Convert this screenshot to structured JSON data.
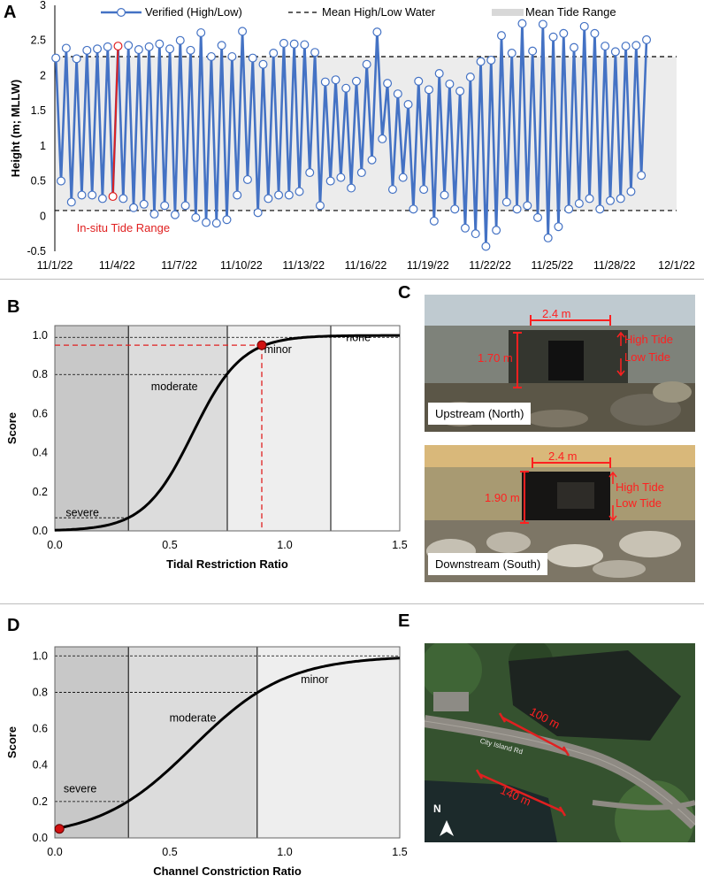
{
  "panel_labels": {
    "a": "A",
    "b": "B",
    "c": "C",
    "d": "D",
    "e": "E"
  },
  "colors": {
    "series": "#4472c4",
    "highlight": "#e02020",
    "severe_zone": "#c8c8c8",
    "moderate_zone": "#dcdcdc",
    "minor_zone": "#eeeeee",
    "tide_band": "#ececec",
    "photo_annotation": "#ff2020"
  },
  "chart_data": [
    {
      "id": "A",
      "type": "line",
      "ylabel": "Height (m; MLLW)",
      "xlabel": "",
      "ylim": [
        -0.5,
        3
      ],
      "yticks": [
        -0.5,
        0,
        0.5,
        1,
        1.5,
        2,
        2.5,
        3
      ],
      "x_start": "11/1/22",
      "x_end": "12/1/22",
      "x_days": 30,
      "xtick_labels": [
        "11/1/22",
        "11/4/22",
        "11/7/22",
        "11/10/22",
        "11/13/22",
        "11/16/22",
        "11/19/22",
        "11/22/22",
        "11/25/22",
        "11/28/22",
        "12/1/22"
      ],
      "legend": {
        "verified": "Verified (High/Low)",
        "mean_line": "Mean High/Low Water",
        "range": "Mean Tide Range"
      },
      "mean_high_water": 2.27,
      "mean_low_water": 0.08,
      "annotation": "In-situ Tide Range",
      "highlight_index": [
        11,
        12
      ],
      "points": [
        [
          0.05,
          2.25
        ],
        [
          0.3,
          0.5
        ],
        [
          0.55,
          2.39
        ],
        [
          0.8,
          0.2
        ],
        [
          1.05,
          2.24
        ],
        [
          1.3,
          0.3
        ],
        [
          1.55,
          2.36
        ],
        [
          1.8,
          0.3
        ],
        [
          2.05,
          2.38
        ],
        [
          2.3,
          0.25
        ],
        [
          2.55,
          2.41
        ],
        [
          2.8,
          0.28
        ],
        [
          3.05,
          2.42
        ],
        [
          3.3,
          0.25
        ],
        [
          3.55,
          2.43
        ],
        [
          3.8,
          0.12
        ],
        [
          4.05,
          2.37
        ],
        [
          4.3,
          0.17
        ],
        [
          4.55,
          2.41
        ],
        [
          4.8,
          0.03
        ],
        [
          5.05,
          2.45
        ],
        [
          5.3,
          0.15
        ],
        [
          5.55,
          2.38
        ],
        [
          5.8,
          0.02
        ],
        [
          6.05,
          2.5
        ],
        [
          6.3,
          0.15
        ],
        [
          6.55,
          2.36
        ],
        [
          6.8,
          -0.02
        ],
        [
          7.05,
          2.61
        ],
        [
          7.3,
          -0.09
        ],
        [
          7.55,
          2.27
        ],
        [
          7.8,
          -0.1
        ],
        [
          8.05,
          2.43
        ],
        [
          8.3,
          -0.05
        ],
        [
          8.55,
          2.27
        ],
        [
          8.8,
          0.3
        ],
        [
          9.05,
          2.63
        ],
        [
          9.3,
          0.52
        ],
        [
          9.55,
          2.25
        ],
        [
          9.8,
          0.05
        ],
        [
          10.05,
          2.16
        ],
        [
          10.3,
          0.25
        ],
        [
          10.55,
          2.32
        ],
        [
          10.8,
          0.3
        ],
        [
          11.05,
          2.46
        ],
        [
          11.3,
          0.3
        ],
        [
          11.55,
          2.45
        ],
        [
          11.8,
          0.35
        ],
        [
          12.05,
          2.44
        ],
        [
          12.3,
          0.62
        ],
        [
          12.55,
          2.33
        ],
        [
          12.8,
          0.15
        ],
        [
          13.05,
          1.91
        ],
        [
          13.3,
          0.5
        ],
        [
          13.55,
          1.94
        ],
        [
          13.8,
          0.55
        ],
        [
          14.05,
          1.82
        ],
        [
          14.3,
          0.4
        ],
        [
          14.55,
          1.92
        ],
        [
          14.8,
          0.62
        ],
        [
          15.05,
          2.16
        ],
        [
          15.3,
          0.8
        ],
        [
          15.55,
          2.62
        ],
        [
          15.8,
          1.1
        ],
        [
          16.05,
          1.89
        ],
        [
          16.3,
          0.38
        ],
        [
          16.55,
          1.74
        ],
        [
          16.8,
          0.55
        ],
        [
          17.05,
          1.59
        ],
        [
          17.3,
          0.1
        ],
        [
          17.55,
          1.92
        ],
        [
          17.8,
          0.38
        ],
        [
          18.05,
          1.8
        ],
        [
          18.3,
          -0.07
        ],
        [
          18.55,
          2.03
        ],
        [
          18.8,
          0.3
        ],
        [
          19.05,
          1.88
        ],
        [
          19.3,
          0.1
        ],
        [
          19.55,
          1.78
        ],
        [
          19.8,
          -0.17
        ],
        [
          20.05,
          1.98
        ],
        [
          20.3,
          -0.25
        ],
        [
          20.55,
          2.2
        ],
        [
          20.8,
          -0.43
        ],
        [
          21.05,
          2.22
        ],
        [
          21.3,
          -0.2
        ],
        [
          21.55,
          2.57
        ],
        [
          21.8,
          0.2
        ],
        [
          22.05,
          2.32
        ],
        [
          22.3,
          0.1
        ],
        [
          22.55,
          2.74
        ],
        [
          22.8,
          0.15
        ],
        [
          23.05,
          2.35
        ],
        [
          23.3,
          -0.02
        ],
        [
          23.55,
          2.73
        ],
        [
          23.8,
          -0.31
        ],
        [
          24.05,
          2.55
        ],
        [
          24.3,
          -0.15
        ],
        [
          24.55,
          2.6
        ],
        [
          24.8,
          0.1
        ],
        [
          25.05,
          2.4
        ],
        [
          25.3,
          0.18
        ],
        [
          25.55,
          2.7
        ],
        [
          25.8,
          0.25
        ],
        [
          26.05,
          2.6
        ],
        [
          26.3,
          0.1
        ],
        [
          26.55,
          2.42
        ],
        [
          26.8,
          0.22
        ],
        [
          27.05,
          2.34
        ],
        [
          27.3,
          0.25
        ],
        [
          27.55,
          2.42
        ],
        [
          27.8,
          0.35
        ],
        [
          28.05,
          2.43
        ],
        [
          28.3,
          0.58
        ],
        [
          28.55,
          2.51
        ]
      ]
    },
    {
      "id": "B",
      "type": "line",
      "xlabel": "Tidal Restriction Ratio",
      "ylabel": "Score",
      "xlim": [
        0,
        1.5
      ],
      "ylim": [
        0,
        1.05
      ],
      "xticks": [
        0,
        0.5,
        1,
        1.5
      ],
      "xtick_labels": [
        "0.0",
        "0.5",
        "1.0",
        "1.5"
      ],
      "yticks": [
        0,
        0.2,
        0.4,
        0.6,
        0.8,
        1
      ],
      "ytick_labels": [
        "0.0",
        "0.2",
        "0.4",
        "0.6",
        "0.8",
        "1.0"
      ],
      "zones": [
        {
          "label": "severe",
          "from": 0,
          "to": 0.32,
          "label_x": 0.12,
          "label_y": 0.075
        },
        {
          "label": "moderate",
          "from": 0.32,
          "to": 0.75,
          "label_x": 0.52,
          "label_y": 0.72
        },
        {
          "label": "minor",
          "from": 0.75,
          "to": 1.2,
          "label_x": 0.97,
          "label_y": 0.91
        },
        {
          "label": "none",
          "from": 1.2,
          "to": 1.5,
          "label_x": 1.32,
          "label_y": 0.97
        }
      ],
      "thresholds": [
        0.067,
        0.8,
        0.99
      ],
      "curve": {
        "midpoint": 0.6,
        "steepness": 9.4
      },
      "marker": {
        "x": 0.9,
        "y": 0.95
      }
    },
    {
      "id": "D",
      "type": "line",
      "xlabel": "Channel Constriction Ratio",
      "ylabel": "Score",
      "xlim": [
        0,
        1.5
      ],
      "ylim": [
        0,
        1.05
      ],
      "xticks": [
        0,
        0.5,
        1,
        1.5
      ],
      "xtick_labels": [
        "0.0",
        "0.5",
        "1.0",
        "1.5"
      ],
      "yticks": [
        0,
        0.2,
        0.4,
        0.6,
        0.8,
        1
      ],
      "ytick_labels": [
        "0.0",
        "0.2",
        "0.4",
        "0.6",
        "0.8",
        "1.0"
      ],
      "zones": [
        {
          "label": "severe",
          "from": 0,
          "to": 0.32,
          "label_x": 0.11,
          "label_y": 0.25
        },
        {
          "label": "moderate",
          "from": 0.32,
          "to": 0.88,
          "label_x": 0.6,
          "label_y": 0.64
        },
        {
          "label": "minor",
          "from": 0.88,
          "to": 1.5,
          "label_x": 1.13,
          "label_y": 0.85
        }
      ],
      "thresholds": [
        0.2,
        0.8,
        1.0
      ],
      "curve": {
        "midpoint": 0.6,
        "steepness": 4.9
      },
      "marker": {
        "x": 0.02,
        "y": 0.05
      }
    }
  ],
  "photos": {
    "upstream": {
      "caption": "Upstream (North)",
      "width": "2.4 m",
      "height": "1.70 m",
      "high": "High Tide",
      "low": "Low Tide"
    },
    "downstream": {
      "caption": "Downstream (South)",
      "width": "2.4 m",
      "height": "1.90 m",
      "high": "High Tide",
      "low": "Low Tide"
    },
    "aerial": {
      "span_upper": "100 m",
      "span_lower": "140 m",
      "road_label": "City Island Rd",
      "north": "N"
    }
  }
}
